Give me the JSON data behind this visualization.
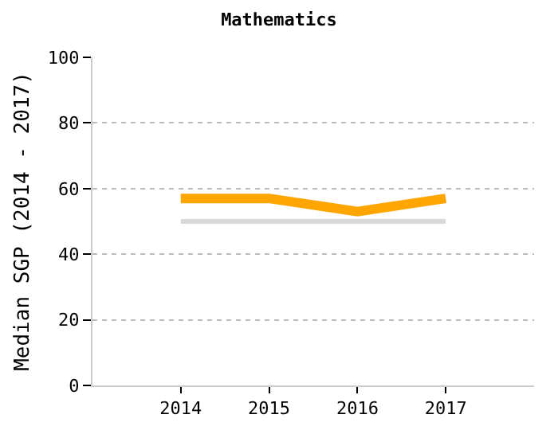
{
  "chart_data": {
    "type": "line",
    "title": "Mathematics",
    "ylabel": "Median SGP (2014 - 2017)",
    "categories": [
      "2014",
      "2015",
      "2016",
      "2017"
    ],
    "series": [
      {
        "color": "#d9d9d9",
        "values": [
          50,
          50,
          50,
          50
        ]
      },
      {
        "color": "#ffa500",
        "values": [
          57,
          57,
          53,
          57
        ]
      }
    ],
    "ylim": [
      0,
      100
    ],
    "yticks": [
      0,
      20,
      40,
      60,
      80,
      100
    ],
    "grid": "y"
  }
}
